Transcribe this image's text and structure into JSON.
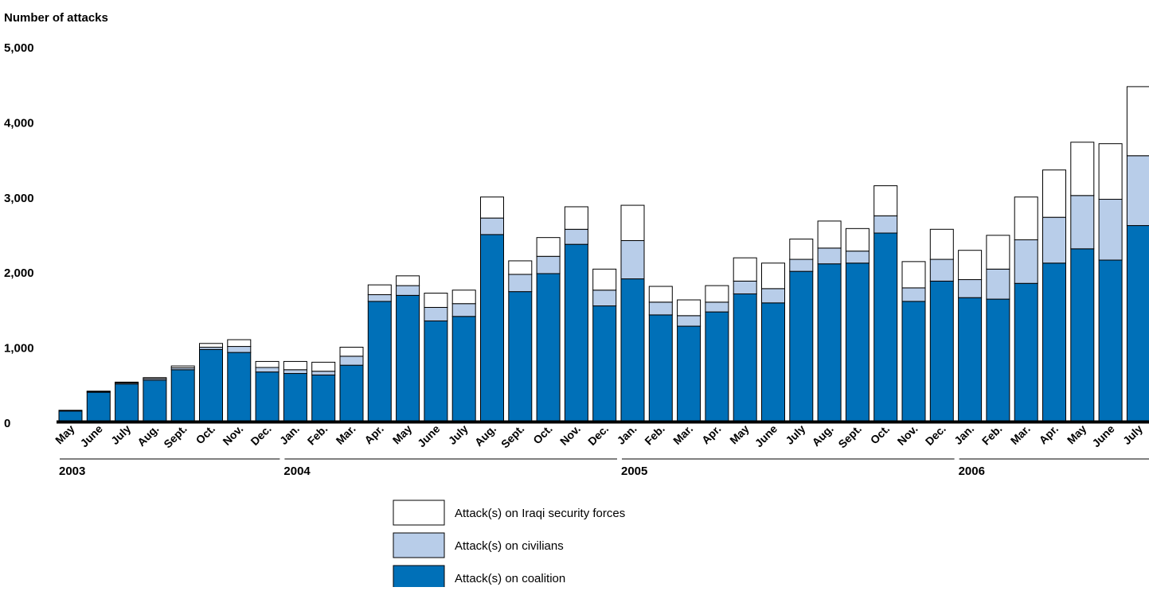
{
  "chart_data": {
    "type": "bar",
    "stacked": true,
    "ylabel": "Number of attacks",
    "ylim": [
      0,
      5000
    ],
    "yticks": [
      0,
      1000,
      2000,
      3000,
      4000,
      5000
    ],
    "ytick_labels": [
      "0",
      "1,000",
      "2,000",
      "3,000",
      "4,000",
      "5,000"
    ],
    "categories": [
      "May",
      "June",
      "July",
      "Aug.",
      "Sept.",
      "Oct.",
      "Nov.",
      "Dec.",
      "Jan.",
      "Feb.",
      "Mar.",
      "Apr.",
      "May",
      "June",
      "July",
      "Aug.",
      "Sept.",
      "Oct.",
      "Nov.",
      "Dec.",
      "Jan.",
      "Feb.",
      "Mar.",
      "Apr.",
      "May",
      "June",
      "July",
      "Aug.",
      "Sept.",
      "Oct.",
      "Nov.",
      "Dec.",
      "Jan.",
      "Feb.",
      "Mar.",
      "Apr.",
      "May",
      "June",
      "July"
    ],
    "year_groups": [
      {
        "label": "2003",
        "start": 0,
        "end": 7
      },
      {
        "label": "2004",
        "start": 8,
        "end": 19
      },
      {
        "label": "2005",
        "start": 20,
        "end": 31
      },
      {
        "label": "2006",
        "start": 32,
        "end": 38
      }
    ],
    "series": [
      {
        "name": "Attack(s) on coalition",
        "color": "#0070b8",
        "values": [
          130,
          380,
          490,
          540,
          680,
          950,
          910,
          650,
          630,
          610,
          740,
          1590,
          1670,
          1330,
          1390,
          2480,
          1720,
          1960,
          2350,
          1530,
          1890,
          1410,
          1260,
          1450,
          1690,
          1570,
          1990,
          2090,
          2100,
          2500,
          1590,
          1860,
          1640,
          1620,
          1830,
          2100,
          2290,
          2140,
          2600
        ]
      },
      {
        "name": "Attack(s) on civilians",
        "color": "#b8cde9",
        "values": [
          5,
          10,
          15,
          20,
          25,
          30,
          80,
          60,
          50,
          50,
          120,
          90,
          130,
          180,
          170,
          220,
          230,
          230,
          200,
          210,
          510,
          170,
          140,
          130,
          170,
          190,
          160,
          210,
          160,
          230,
          180,
          290,
          240,
          400,
          580,
          610,
          710,
          810,
          930
        ]
      },
      {
        "name": "Attack(s) on Iraqi security forces",
        "color": "#ffffff",
        "values": [
          5,
          5,
          10,
          15,
          25,
          50,
          90,
          80,
          110,
          120,
          120,
          130,
          130,
          190,
          180,
          280,
          180,
          250,
          300,
          280,
          470,
          210,
          210,
          220,
          310,
          340,
          270,
          360,
          300,
          400,
          350,
          400,
          390,
          450,
          570,
          630,
          710,
          740,
          920
        ]
      }
    ],
    "legend_position": "bottom-center",
    "legend_order": [
      "Attack(s) on Iraqi security forces",
      "Attack(s) on civilians",
      "Attack(s) on coalition"
    ]
  }
}
